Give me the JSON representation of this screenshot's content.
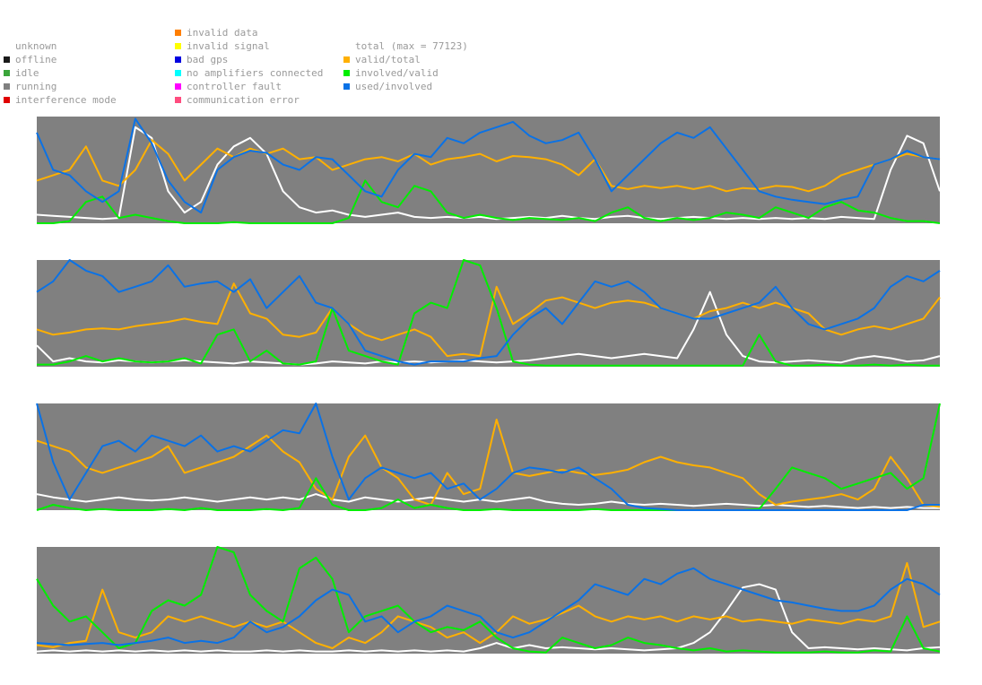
{
  "legend": {
    "status": [
      {
        "label": "unknown",
        "color": ""
      },
      {
        "label": "offline",
        "color": "#1a1a1a"
      },
      {
        "label": "idle",
        "color": "#3aa53a"
      },
      {
        "label": "running",
        "color": "#808080"
      },
      {
        "label": "interference mode",
        "color": "#e00000"
      }
    ],
    "errors": [
      {
        "label": "invalid data",
        "color": "#ff7f00"
      },
      {
        "label": "invalid signal",
        "color": "#ffff00"
      },
      {
        "label": "bad gps",
        "color": "#0000e0"
      },
      {
        "label": "no amplifiers connected",
        "color": "#00ffff"
      },
      {
        "label": "controller fault",
        "color": "#ff00ff"
      },
      {
        "label": "communication error",
        "color": "#ff4c7f"
      }
    ],
    "metrics": [
      {
        "label": "total (max = 77123)",
        "color": ""
      },
      {
        "label": "valid/total",
        "color": "#ffb000"
      },
      {
        "label": "involved/valid",
        "color": "#00ee00"
      },
      {
        "label": "used/involved",
        "color": "#0a72e6"
      }
    ]
  },
  "chart_data": [
    {
      "type": "line",
      "ylim": [
        0,
        1
      ],
      "background": "#808080",
      "series": [
        {
          "name": "total (max = 77123)",
          "color": "#ffffff",
          "values": [
            0.08,
            0.07,
            0.06,
            0.05,
            0.04,
            0.05,
            0.9,
            0.8,
            0.3,
            0.1,
            0.2,
            0.55,
            0.72,
            0.8,
            0.65,
            0.3,
            0.15,
            0.1,
            0.12,
            0.08,
            0.06,
            0.08,
            0.1,
            0.06,
            0.05,
            0.06,
            0.05,
            0.06,
            0.04,
            0.05,
            0.06,
            0.05,
            0.07,
            0.05,
            0.04,
            0.06,
            0.07,
            0.05,
            0.04,
            0.05,
            0.06,
            0.05,
            0.04,
            0.05,
            0.04,
            0.05,
            0.04,
            0.05,
            0.04,
            0.06,
            0.05,
            0.04,
            0.5,
            0.82,
            0.75,
            0.3
          ]
        },
        {
          "name": "valid/total",
          "color": "#ffb000",
          "values": [
            0.4,
            0.45,
            0.5,
            0.72,
            0.4,
            0.35,
            0.5,
            0.78,
            0.65,
            0.4,
            0.55,
            0.7,
            0.62,
            0.7,
            0.65,
            0.7,
            0.6,
            0.62,
            0.5,
            0.55,
            0.6,
            0.62,
            0.58,
            0.65,
            0.55,
            0.6,
            0.62,
            0.65,
            0.58,
            0.63,
            0.62,
            0.6,
            0.55,
            0.45,
            0.6,
            0.35,
            0.32,
            0.35,
            0.33,
            0.35,
            0.32,
            0.35,
            0.3,
            0.33,
            0.32,
            0.35,
            0.34,
            0.3,
            0.35,
            0.45,
            0.5,
            0.55,
            0.6,
            0.65,
            0.62,
            0.6
          ]
        },
        {
          "name": "involved/valid",
          "color": "#00ee00",
          "values": [
            0.0,
            0.0,
            0.02,
            0.2,
            0.25,
            0.05,
            0.08,
            0.05,
            0.02,
            0.0,
            0.0,
            0.0,
            0.01,
            0.0,
            0.0,
            0.0,
            0.0,
            0.0,
            0.0,
            0.05,
            0.4,
            0.2,
            0.15,
            0.35,
            0.3,
            0.1,
            0.05,
            0.08,
            0.05,
            0.03,
            0.05,
            0.04,
            0.03,
            0.05,
            0.02,
            0.1,
            0.15,
            0.05,
            0.02,
            0.05,
            0.03,
            0.05,
            0.1,
            0.08,
            0.05,
            0.15,
            0.1,
            0.05,
            0.15,
            0.2,
            0.12,
            0.1,
            0.05,
            0.02,
            0.02,
            0.0
          ]
        },
        {
          "name": "used/involved",
          "color": "#0a72e6",
          "values": [
            0.85,
            0.5,
            0.45,
            0.3,
            0.2,
            0.3,
            0.98,
            0.75,
            0.4,
            0.2,
            0.1,
            0.5,
            0.62,
            0.68,
            0.66,
            0.55,
            0.5,
            0.62,
            0.6,
            0.45,
            0.3,
            0.25,
            0.5,
            0.65,
            0.62,
            0.8,
            0.75,
            0.85,
            0.9,
            0.95,
            0.82,
            0.75,
            0.78,
            0.85,
            0.6,
            0.3,
            0.45,
            0.6,
            0.75,
            0.85,
            0.8,
            0.9,
            0.7,
            0.5,
            0.3,
            0.25,
            0.22,
            0.2,
            0.18,
            0.22,
            0.25,
            0.55,
            0.6,
            0.68,
            0.62,
            0.6
          ]
        }
      ]
    },
    {
      "type": "line",
      "ylim": [
        0,
        1
      ],
      "background": "#808080",
      "series": [
        {
          "name": "total (max = 77123)",
          "color": "#ffffff",
          "values": [
            0.2,
            0.05,
            0.08,
            0.05,
            0.04,
            0.06,
            0.05,
            0.04,
            0.05,
            0.06,
            0.05,
            0.04,
            0.03,
            0.05,
            0.04,
            0.03,
            0.02,
            0.03,
            0.05,
            0.04,
            0.03,
            0.05,
            0.04,
            0.05,
            0.04,
            0.05,
            0.06,
            0.05,
            0.04,
            0.05,
            0.06,
            0.08,
            0.1,
            0.12,
            0.1,
            0.08,
            0.1,
            0.12,
            0.1,
            0.08,
            0.35,
            0.7,
            0.3,
            0.1,
            0.05,
            0.04,
            0.05,
            0.06,
            0.05,
            0.04,
            0.08,
            0.1,
            0.08,
            0.05,
            0.06,
            0.1
          ]
        },
        {
          "name": "valid/total",
          "color": "#ffb000",
          "values": [
            0.35,
            0.3,
            0.32,
            0.35,
            0.36,
            0.35,
            0.38,
            0.4,
            0.42,
            0.45,
            0.42,
            0.4,
            0.78,
            0.5,
            0.45,
            0.3,
            0.28,
            0.32,
            0.55,
            0.4,
            0.3,
            0.25,
            0.3,
            0.35,
            0.28,
            0.1,
            0.12,
            0.1,
            0.75,
            0.4,
            0.5,
            0.62,
            0.65,
            0.6,
            0.55,
            0.6,
            0.62,
            0.6,
            0.55,
            0.5,
            0.45,
            0.52,
            0.55,
            0.6,
            0.55,
            0.6,
            0.55,
            0.5,
            0.35,
            0.3,
            0.35,
            0.38,
            0.35,
            0.4,
            0.45,
            0.65
          ]
        },
        {
          "name": "involved/valid",
          "color": "#00ee00",
          "values": [
            0.02,
            0.02,
            0.05,
            0.1,
            0.05,
            0.08,
            0.05,
            0.04,
            0.05,
            0.08,
            0.03,
            0.3,
            0.35,
            0.05,
            0.15,
            0.03,
            0.02,
            0.05,
            0.55,
            0.15,
            0.1,
            0.05,
            0.02,
            0.5,
            0.6,
            0.55,
            1.0,
            0.95,
            0.55,
            0.05,
            0.02,
            0.01,
            0.01,
            0.01,
            0.01,
            0.01,
            0.01,
            0.01,
            0.01,
            0.01,
            0.01,
            0.01,
            0.01,
            0.01,
            0.3,
            0.05,
            0.01,
            0.01,
            0.02,
            0.01,
            0.01,
            0.02,
            0.01,
            0.02,
            0.01,
            0.01
          ]
        },
        {
          "name": "used/involved",
          "color": "#0a72e6",
          "values": [
            0.7,
            0.8,
            1.0,
            0.9,
            0.85,
            0.7,
            0.75,
            0.8,
            0.95,
            0.75,
            0.78,
            0.8,
            0.7,
            0.82,
            0.55,
            0.7,
            0.85,
            0.6,
            0.55,
            0.4,
            0.15,
            0.1,
            0.05,
            0.02,
            0.05,
            0.05,
            0.05,
            0.08,
            0.1,
            0.3,
            0.45,
            0.55,
            0.4,
            0.6,
            0.8,
            0.75,
            0.8,
            0.7,
            0.55,
            0.5,
            0.45,
            0.45,
            0.5,
            0.55,
            0.6,
            0.75,
            0.55,
            0.4,
            0.35,
            0.4,
            0.45,
            0.55,
            0.75,
            0.85,
            0.8,
            0.9
          ]
        }
      ]
    },
    {
      "type": "line",
      "ylim": [
        0,
        1
      ],
      "background": "#808080",
      "series": [
        {
          "name": "total (max = 77123)",
          "color": "#ffffff",
          "values": [
            0.15,
            0.12,
            0.1,
            0.08,
            0.1,
            0.12,
            0.1,
            0.09,
            0.1,
            0.12,
            0.1,
            0.08,
            0.1,
            0.12,
            0.1,
            0.12,
            0.1,
            0.15,
            0.1,
            0.08,
            0.12,
            0.1,
            0.08,
            0.1,
            0.12,
            0.1,
            0.08,
            0.1,
            0.08,
            0.1,
            0.12,
            0.08,
            0.06,
            0.05,
            0.06,
            0.08,
            0.06,
            0.05,
            0.06,
            0.05,
            0.04,
            0.05,
            0.06,
            0.05,
            0.04,
            0.05,
            0.04,
            0.03,
            0.04,
            0.03,
            0.02,
            0.03,
            0.02,
            0.03,
            0.02,
            0.02
          ]
        },
        {
          "name": "valid/total",
          "color": "#ffb000",
          "values": [
            0.65,
            0.6,
            0.55,
            0.4,
            0.35,
            0.4,
            0.45,
            0.5,
            0.6,
            0.35,
            0.4,
            0.45,
            0.5,
            0.6,
            0.7,
            0.55,
            0.45,
            0.2,
            0.1,
            0.5,
            0.7,
            0.4,
            0.3,
            0.1,
            0.05,
            0.35,
            0.15,
            0.2,
            0.85,
            0.35,
            0.32,
            0.35,
            0.38,
            0.35,
            0.33,
            0.35,
            0.38,
            0.45,
            0.5,
            0.45,
            0.42,
            0.4,
            0.35,
            0.3,
            0.15,
            0.05,
            0.08,
            0.1,
            0.12,
            0.15,
            0.1,
            0.2,
            0.5,
            0.3,
            0.05,
            0.03
          ]
        },
        {
          "name": "involved/valid",
          "color": "#00ee00",
          "values": [
            0.0,
            0.05,
            0.02,
            0.0,
            0.01,
            0.0,
            0.0,
            0.0,
            0.01,
            0.0,
            0.02,
            0.0,
            0.0,
            0.0,
            0.01,
            0.0,
            0.02,
            0.3,
            0.05,
            0.0,
            0.0,
            0.02,
            0.1,
            0.02,
            0.05,
            0.02,
            0.0,
            0.0,
            0.01,
            0.0,
            0.0,
            0.0,
            0.0,
            0.0,
            0.01,
            0.0,
            0.0,
            0.0,
            0.0,
            0.0,
            0.0,
            0.0,
            0.0,
            0.0,
            0.01,
            0.2,
            0.4,
            0.35,
            0.3,
            0.2,
            0.25,
            0.3,
            0.35,
            0.2,
            0.3,
            1.0
          ]
        },
        {
          "name": "used/involved",
          "color": "#0a72e6",
          "values": [
            1.0,
            0.45,
            0.1,
            0.35,
            0.6,
            0.65,
            0.55,
            0.7,
            0.65,
            0.6,
            0.7,
            0.55,
            0.6,
            0.55,
            0.65,
            0.75,
            0.72,
            1.0,
            0.5,
            0.1,
            0.3,
            0.4,
            0.35,
            0.3,
            0.35,
            0.2,
            0.25,
            0.1,
            0.2,
            0.35,
            0.4,
            0.38,
            0.35,
            0.4,
            0.3,
            0.2,
            0.05,
            0.02,
            0.01,
            0.0,
            0.0,
            0.0,
            0.0,
            0.0,
            0.0,
            0.0,
            0.0,
            0.0,
            0.0,
            0.0,
            0.0,
            0.0,
            0.0,
            0.0,
            0.05,
            0.05
          ]
        }
      ]
    },
    {
      "type": "line",
      "ylim": [
        0,
        1
      ],
      "background": "#808080",
      "series": [
        {
          "name": "total (max = 77123)",
          "color": "#ffffff",
          "values": [
            0.02,
            0.03,
            0.02,
            0.03,
            0.02,
            0.03,
            0.02,
            0.03,
            0.02,
            0.03,
            0.02,
            0.03,
            0.02,
            0.02,
            0.03,
            0.02,
            0.03,
            0.02,
            0.02,
            0.03,
            0.02,
            0.03,
            0.02,
            0.03,
            0.02,
            0.03,
            0.02,
            0.05,
            0.1,
            0.05,
            0.08,
            0.05,
            0.06,
            0.05,
            0.04,
            0.05,
            0.04,
            0.03,
            0.04,
            0.05,
            0.1,
            0.2,
            0.4,
            0.62,
            0.65,
            0.6,
            0.2,
            0.05,
            0.06,
            0.05,
            0.04,
            0.05,
            0.04,
            0.03,
            0.05,
            0.06
          ]
        },
        {
          "name": "valid/total",
          "color": "#ffb000",
          "values": [
            0.08,
            0.06,
            0.1,
            0.12,
            0.6,
            0.2,
            0.15,
            0.2,
            0.35,
            0.3,
            0.35,
            0.3,
            0.25,
            0.3,
            0.25,
            0.3,
            0.2,
            0.1,
            0.05,
            0.15,
            0.1,
            0.2,
            0.35,
            0.3,
            0.25,
            0.15,
            0.2,
            0.1,
            0.2,
            0.35,
            0.28,
            0.32,
            0.38,
            0.45,
            0.35,
            0.3,
            0.35,
            0.32,
            0.35,
            0.3,
            0.35,
            0.32,
            0.35,
            0.3,
            0.32,
            0.3,
            0.28,
            0.32,
            0.3,
            0.28,
            0.32,
            0.3,
            0.35,
            0.85,
            0.25,
            0.3
          ]
        },
        {
          "name": "involved/valid",
          "color": "#00ee00",
          "values": [
            0.7,
            0.45,
            0.3,
            0.35,
            0.2,
            0.05,
            0.1,
            0.4,
            0.5,
            0.45,
            0.55,
            1.0,
            0.95,
            0.55,
            0.4,
            0.3,
            0.8,
            0.9,
            0.7,
            0.2,
            0.35,
            0.4,
            0.45,
            0.3,
            0.2,
            0.25,
            0.22,
            0.3,
            0.15,
            0.05,
            0.02,
            0.01,
            0.15,
            0.1,
            0.05,
            0.08,
            0.15,
            0.1,
            0.08,
            0.05,
            0.03,
            0.05,
            0.02,
            0.03,
            0.02,
            0.01,
            0.01,
            0.01,
            0.02,
            0.01,
            0.01,
            0.03,
            0.02,
            0.35,
            0.05,
            0.02
          ]
        },
        {
          "name": "used/involved",
          "color": "#0a72e6",
          "values": [
            0.1,
            0.09,
            0.08,
            0.09,
            0.1,
            0.08,
            0.1,
            0.12,
            0.15,
            0.1,
            0.12,
            0.1,
            0.15,
            0.3,
            0.2,
            0.25,
            0.35,
            0.5,
            0.6,
            0.55,
            0.3,
            0.35,
            0.2,
            0.3,
            0.35,
            0.45,
            0.4,
            0.35,
            0.2,
            0.15,
            0.2,
            0.3,
            0.4,
            0.5,
            0.65,
            0.6,
            0.55,
            0.7,
            0.65,
            0.75,
            0.8,
            0.7,
            0.65,
            0.6,
            0.55,
            0.5,
            0.48,
            0.45,
            0.42,
            0.4,
            0.4,
            0.45,
            0.6,
            0.7,
            0.65,
            0.55
          ]
        }
      ]
    }
  ]
}
